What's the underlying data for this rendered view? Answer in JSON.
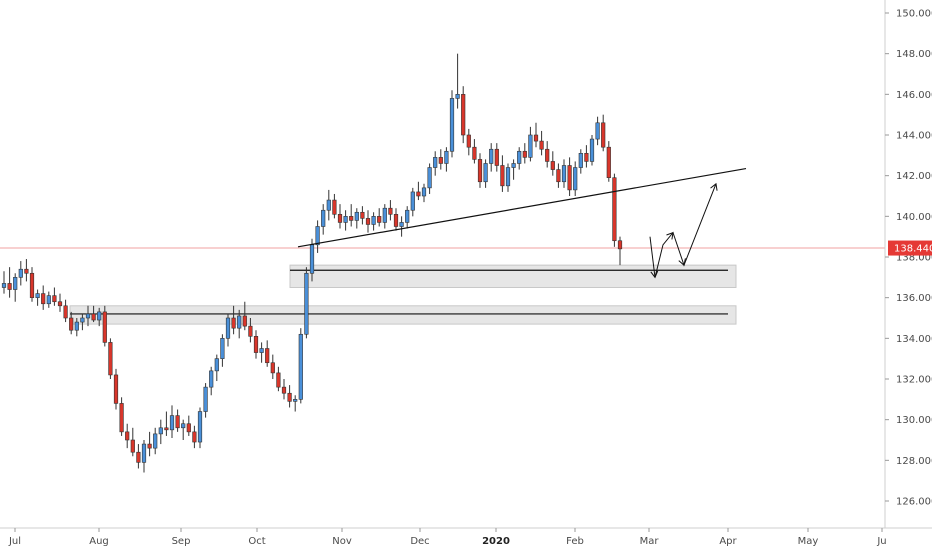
{
  "chart_data": {
    "type": "candlestick",
    "y_axis": {
      "position": "right",
      "range": [
        125.0,
        150.5
      ],
      "ticks": [
        "150.000",
        "148.000",
        "146.000",
        "144.000",
        "142.000",
        "140.000",
        "138.000",
        "136.000",
        "134.000",
        "132.000",
        "130.000",
        "128.000",
        "126.000"
      ]
    },
    "x_axis": {
      "labels": [
        {
          "text": "Jul",
          "bold": false
        },
        {
          "text": "Aug",
          "bold": false
        },
        {
          "text": "Sep",
          "bold": false
        },
        {
          "text": "Oct",
          "bold": false
        },
        {
          "text": "Nov",
          "bold": false
        },
        {
          "text": "Dec",
          "bold": false
        },
        {
          "text": "2020",
          "bold": true
        },
        {
          "text": "Feb",
          "bold": false
        },
        {
          "text": "Mar",
          "bold": false
        },
        {
          "text": "Apr",
          "bold": false
        },
        {
          "text": "May",
          "bold": false
        },
        {
          "text": "Ju",
          "bold": false
        }
      ]
    },
    "grid": false,
    "last_price": "138.440",
    "last_price_value": 138.44,
    "colors": {
      "up": "#4a90d9",
      "down": "#d9362b",
      "wick": "#333333",
      "line": "#111111",
      "zone": "#e6e6e6",
      "zone_border": "#c8c8c8",
      "price_line": "#f0a0a0",
      "price_tag": "#e53935"
    },
    "support_zones": [
      {
        "top": 137.6,
        "bottom": 136.5,
        "line": 137.35
      },
      {
        "top": 135.6,
        "bottom": 134.7,
        "line": 135.2
      }
    ],
    "trendline": {
      "from": [
        16.5,
        138.5
      ],
      "to": [
        42.8,
        142.35
      ]
    },
    "projection": [
      [
        37.4,
        139.0
      ],
      [
        37.8,
        137.0
      ],
      [
        38.4,
        138.6
      ],
      [
        38.9,
        139.2
      ],
      [
        39.4,
        137.6
      ],
      [
        40.7,
        141.6
      ]
    ],
    "candles": [
      [
        136.5,
        137.3,
        136.2,
        136.7
      ],
      [
        136.7,
        137.5,
        136.0,
        136.4
      ],
      [
        136.4,
        137.2,
        135.8,
        137.0
      ],
      [
        137.0,
        137.8,
        136.6,
        137.4
      ],
      [
        137.4,
        137.9,
        136.8,
        137.2
      ],
      [
        137.2,
        137.5,
        135.8,
        136.0
      ],
      [
        136.0,
        136.4,
        135.6,
        136.2
      ],
      [
        136.2,
        136.6,
        135.4,
        135.7
      ],
      [
        135.7,
        136.3,
        135.5,
        136.1
      ],
      [
        136.1,
        136.5,
        135.6,
        135.8
      ],
      [
        135.8,
        136.2,
        135.3,
        135.6
      ],
      [
        135.6,
        135.9,
        134.8,
        135.0
      ],
      [
        135.0,
        135.3,
        134.2,
        134.4
      ],
      [
        134.4,
        135.0,
        134.1,
        134.8
      ],
      [
        134.8,
        135.2,
        134.4,
        135.0
      ],
      [
        135.0,
        135.6,
        134.6,
        135.2
      ],
      [
        135.2,
        135.6,
        134.8,
        134.9
      ],
      [
        134.9,
        135.5,
        134.6,
        135.3
      ],
      [
        135.3,
        135.6,
        133.6,
        133.8
      ],
      [
        133.8,
        134.0,
        132.0,
        132.2
      ],
      [
        132.2,
        132.5,
        130.5,
        130.8
      ],
      [
        130.8,
        131.1,
        129.2,
        129.4
      ],
      [
        129.4,
        129.8,
        128.6,
        129.0
      ],
      [
        129.0,
        129.6,
        128.2,
        128.4
      ],
      [
        128.4,
        128.8,
        127.6,
        127.9
      ],
      [
        127.9,
        129.0,
        127.4,
        128.8
      ],
      [
        128.8,
        129.4,
        128.2,
        128.6
      ],
      [
        128.6,
        129.6,
        128.3,
        129.3
      ],
      [
        129.3,
        130.0,
        128.8,
        129.6
      ],
      [
        129.6,
        130.4,
        129.2,
        129.5
      ],
      [
        129.5,
        130.7,
        129.1,
        130.2
      ],
      [
        130.2,
        130.5,
        129.4,
        129.6
      ],
      [
        129.6,
        130.0,
        129.0,
        129.8
      ],
      [
        129.8,
        130.2,
        129.2,
        129.4
      ],
      [
        129.4,
        129.7,
        128.6,
        128.9
      ],
      [
        128.9,
        130.6,
        128.6,
        130.4
      ],
      [
        130.4,
        131.8,
        130.1,
        131.6
      ],
      [
        131.6,
        132.6,
        131.2,
        132.4
      ],
      [
        132.4,
        133.2,
        131.9,
        133.0
      ],
      [
        133.0,
        134.2,
        132.6,
        134.0
      ],
      [
        134.0,
        135.2,
        133.6,
        135.0
      ],
      [
        135.0,
        135.6,
        134.2,
        134.5
      ],
      [
        134.5,
        135.4,
        134.0,
        135.1
      ],
      [
        135.1,
        135.8,
        134.4,
        134.6
      ],
      [
        134.6,
        135.0,
        133.8,
        134.1
      ],
      [
        134.1,
        134.4,
        133.0,
        133.3
      ],
      [
        133.3,
        133.8,
        132.8,
        133.5
      ],
      [
        133.5,
        133.9,
        132.6,
        132.8
      ],
      [
        132.8,
        133.2,
        132.0,
        132.3
      ],
      [
        132.3,
        132.6,
        131.4,
        131.6
      ],
      [
        131.6,
        132.0,
        131.0,
        131.3
      ],
      [
        131.3,
        131.7,
        130.6,
        130.9
      ],
      [
        130.9,
        131.2,
        130.4,
        131.0
      ],
      [
        131.0,
        134.5,
        130.8,
        134.2
      ],
      [
        134.2,
        137.5,
        134.0,
        137.2
      ],
      [
        137.2,
        138.9,
        136.8,
        138.6
      ],
      [
        138.6,
        139.8,
        138.2,
        139.5
      ],
      [
        139.5,
        140.6,
        139.1,
        140.3
      ],
      [
        140.3,
        141.3,
        139.8,
        140.8
      ],
      [
        140.8,
        141.1,
        139.9,
        140.1
      ],
      [
        140.1,
        140.6,
        139.4,
        139.7
      ],
      [
        139.7,
        140.3,
        139.3,
        140.0
      ],
      [
        140.0,
        140.6,
        139.5,
        139.8
      ],
      [
        139.8,
        140.4,
        139.4,
        140.2
      ],
      [
        140.2,
        140.5,
        139.6,
        139.9
      ],
      [
        139.9,
        140.3,
        139.2,
        139.6
      ],
      [
        139.6,
        140.2,
        139.3,
        140.0
      ],
      [
        140.0,
        140.4,
        139.5,
        139.7
      ],
      [
        139.7,
        140.6,
        139.4,
        140.4
      ],
      [
        140.4,
        140.8,
        139.8,
        140.1
      ],
      [
        140.1,
        140.4,
        139.3,
        139.5
      ],
      [
        139.5,
        140.0,
        139.0,
        139.7
      ],
      [
        139.7,
        140.5,
        139.4,
        140.3
      ],
      [
        140.3,
        141.4,
        140.0,
        141.2
      ],
      [
        141.2,
        141.7,
        140.8,
        141.0
      ],
      [
        141.0,
        141.6,
        140.7,
        141.4
      ],
      [
        141.4,
        142.6,
        141.1,
        142.4
      ],
      [
        142.4,
        143.2,
        142.0,
        142.9
      ],
      [
        142.9,
        143.3,
        142.3,
        142.6
      ],
      [
        142.6,
        143.4,
        142.2,
        143.2
      ],
      [
        143.2,
        146.2,
        142.9,
        145.8
      ],
      [
        145.8,
        148.0,
        145.3,
        146.0
      ],
      [
        146.0,
        146.4,
        143.6,
        144.0
      ],
      [
        144.0,
        144.3,
        143.0,
        143.4
      ],
      [
        143.4,
        143.8,
        142.6,
        142.8
      ],
      [
        142.8,
        143.1,
        141.4,
        141.7
      ],
      [
        141.7,
        142.8,
        141.4,
        142.6
      ],
      [
        142.6,
        143.6,
        142.2,
        143.3
      ],
      [
        143.3,
        143.6,
        142.2,
        142.5
      ],
      [
        142.5,
        143.0,
        141.2,
        141.5
      ],
      [
        141.5,
        142.6,
        141.2,
        142.4
      ],
      [
        142.4,
        142.8,
        141.8,
        142.6
      ],
      [
        142.6,
        143.4,
        142.3,
        143.2
      ],
      [
        143.2,
        143.6,
        142.6,
        142.9
      ],
      [
        142.9,
        144.4,
        142.7,
        144.0
      ],
      [
        144.0,
        144.6,
        143.4,
        143.7
      ],
      [
        143.7,
        144.2,
        143.0,
        143.3
      ],
      [
        143.3,
        143.7,
        142.4,
        142.7
      ],
      [
        142.7,
        143.2,
        142.0,
        142.3
      ],
      [
        142.3,
        142.6,
        141.4,
        141.7
      ],
      [
        141.7,
        142.8,
        141.4,
        142.5
      ],
      [
        142.5,
        142.9,
        141.0,
        141.3
      ],
      [
        141.3,
        142.7,
        141.0,
        142.4
      ],
      [
        142.4,
        143.3,
        142.1,
        143.1
      ],
      [
        143.1,
        143.5,
        142.4,
        142.7
      ],
      [
        142.7,
        144.0,
        142.5,
        143.8
      ],
      [
        143.8,
        144.9,
        143.5,
        144.6
      ],
      [
        144.6,
        145.0,
        143.2,
        143.4
      ],
      [
        143.4,
        143.7,
        141.7,
        141.9
      ],
      [
        141.9,
        142.1,
        138.5,
        138.8
      ],
      [
        138.8,
        139.0,
        137.6,
        138.4
      ]
    ]
  }
}
